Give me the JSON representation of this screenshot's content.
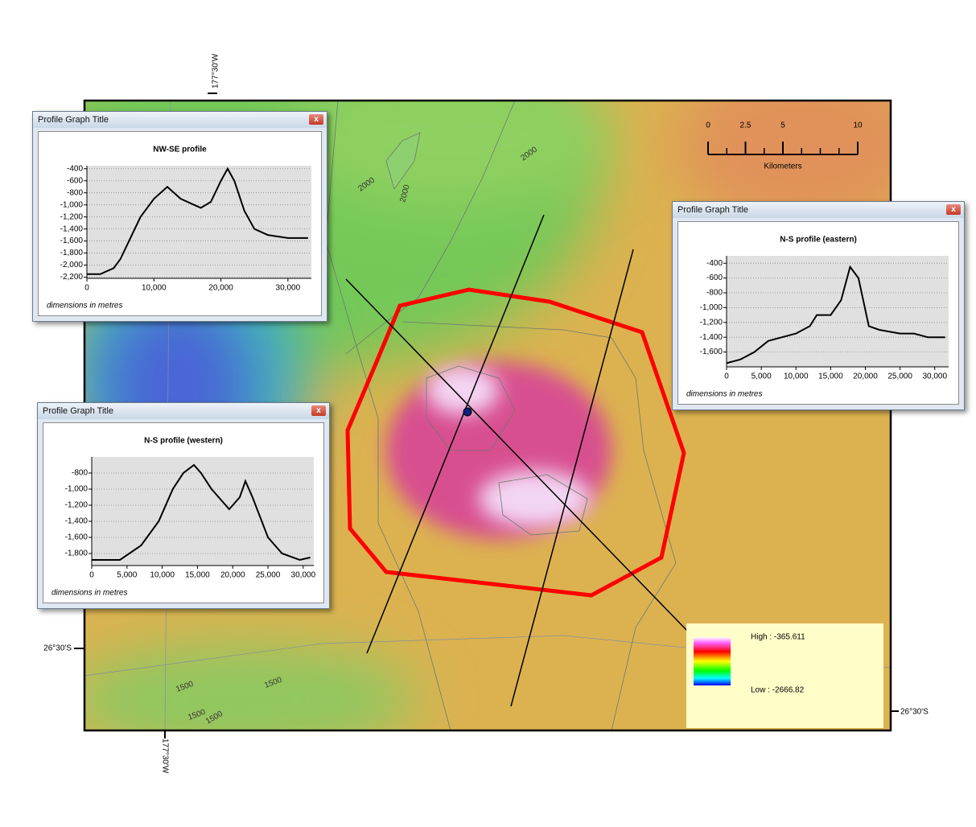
{
  "chart_data": [
    {
      "type": "line",
      "window_title": "Profile Graph Title",
      "title": "NW-SE profile",
      "footnote": "dimensions in metres",
      "color": "#000000",
      "grid": true,
      "x": [
        0,
        2000,
        4000,
        5000,
        6500,
        8000,
        10000,
        12000,
        14000,
        16000,
        17000,
        18500,
        20000,
        21000,
        22000,
        23500,
        25000,
        27000,
        30000,
        33000
      ],
      "values": [
        -2150,
        -2150,
        -2050,
        -1900,
        -1550,
        -1200,
        -900,
        -700,
        -900,
        -1000,
        -1050,
        -950,
        -600,
        -400,
        -600,
        -1100,
        -1400,
        -1500,
        -1550,
        -1550
      ],
      "xlim": [
        0,
        33500
      ],
      "ylim": [
        -2220,
        -350
      ],
      "xticks": [
        0,
        {
          "value": 10000,
          "label": "10,000"
        },
        {
          "value": 20000,
          "label": "20,000"
        },
        {
          "value": 30000,
          "label": "30,000"
        }
      ],
      "yticks": [
        -400,
        -600,
        -800,
        {
          "value": -1000,
          "label": "-1,000"
        },
        {
          "value": -1200,
          "label": "-1,200"
        },
        {
          "value": -1400,
          "label": "-1,400"
        },
        {
          "value": -1600,
          "label": "-1,600"
        },
        {
          "value": -1800,
          "label": "-1,800"
        },
        {
          "value": -2000,
          "label": "-2,000"
        },
        {
          "value": -2200,
          "label": "-2,200"
        }
      ]
    },
    {
      "type": "line",
      "window_title": "Profile Graph Title",
      "title": "N-S profile (eastern)",
      "footnote": "dimensions in metres",
      "color": "#000000",
      "grid": true,
      "x": [
        0,
        2000,
        4000,
        6000,
        8000,
        10000,
        12000,
        13000,
        15000,
        16500,
        17800,
        19000,
        20500,
        22000,
        25000,
        27000,
        29000,
        31500
      ],
      "values": [
        -1750,
        -1700,
        -1600,
        -1450,
        -1400,
        -1350,
        -1250,
        -1100,
        -1100,
        -900,
        -450,
        -600,
        -1250,
        -1300,
        -1350,
        -1350,
        -1400,
        -1400
      ],
      "xlim": [
        0,
        32000
      ],
      "ylim": [
        -1800,
        -300
      ],
      "xticks": [
        0,
        {
          "value": 5000,
          "label": "5,000"
        },
        {
          "value": 10000,
          "label": "10,000"
        },
        {
          "value": 15000,
          "label": "15,000"
        },
        {
          "value": 20000,
          "label": "20,000"
        },
        {
          "value": 25000,
          "label": "25,000"
        },
        {
          "value": 30000,
          "label": "30,000"
        }
      ],
      "yticks": [
        -400,
        -600,
        -800,
        {
          "value": -1000,
          "label": "-1,000"
        },
        {
          "value": -1200,
          "label": "-1,200"
        },
        {
          "value": -1400,
          "label": "-1,400"
        },
        {
          "value": -1600,
          "label": "-1,600"
        }
      ]
    },
    {
      "type": "line",
      "window_title": "Profile Graph Title",
      "title": "N-S profile (western)",
      "footnote": "dimensions in metres",
      "color": "#000000",
      "grid": true,
      "x": [
        0,
        4000,
        7000,
        9500,
        11500,
        13000,
        14500,
        15500,
        17000,
        19000,
        19500,
        21000,
        21800,
        22800,
        25000,
        27000,
        29500,
        31000
      ],
      "values": [
        -1880,
        -1880,
        -1700,
        -1400,
        -1000,
        -800,
        -700,
        -800,
        -1000,
        -1200,
        -1250,
        -1100,
        -900,
        -1100,
        -1600,
        -1800,
        -1880,
        -1850
      ],
      "xlim": [
        0,
        31500
      ],
      "ylim": [
        -1950,
        -600
      ],
      "xticks": [
        0,
        {
          "value": 5000,
          "label": "5,000"
        },
        {
          "value": 10000,
          "label": "10,000"
        },
        {
          "value": 15000,
          "label": "15,000"
        },
        {
          "value": 20000,
          "label": "20,000"
        },
        {
          "value": 25000,
          "label": "25,000"
        },
        {
          "value": 30000,
          "label": "30,000"
        }
      ],
      "yticks": [
        -800,
        {
          "value": -1000,
          "label": "-1,000"
        },
        {
          "value": -1200,
          "label": "-1,200"
        },
        {
          "value": -1400,
          "label": "-1,400"
        },
        {
          "value": -1600,
          "label": "-1,600"
        },
        {
          "value": -1800,
          "label": "-1,800"
        }
      ]
    }
  ],
  "map": {
    "longitude_labels": [
      "177°30'W",
      "177°30'W"
    ],
    "latitude_labels": [
      "26°30'S",
      "26°30'S"
    ],
    "contour_labels": [
      "2000",
      "2000",
      "2000",
      "1500",
      "1500",
      "1500",
      "1500"
    ],
    "scale_bar": {
      "ticks": [
        0,
        2.5,
        5,
        10
      ],
      "unit": "Kilometers"
    },
    "legend": {
      "high": "High : -365.611",
      "low": "Low : -2666.82"
    }
  }
}
